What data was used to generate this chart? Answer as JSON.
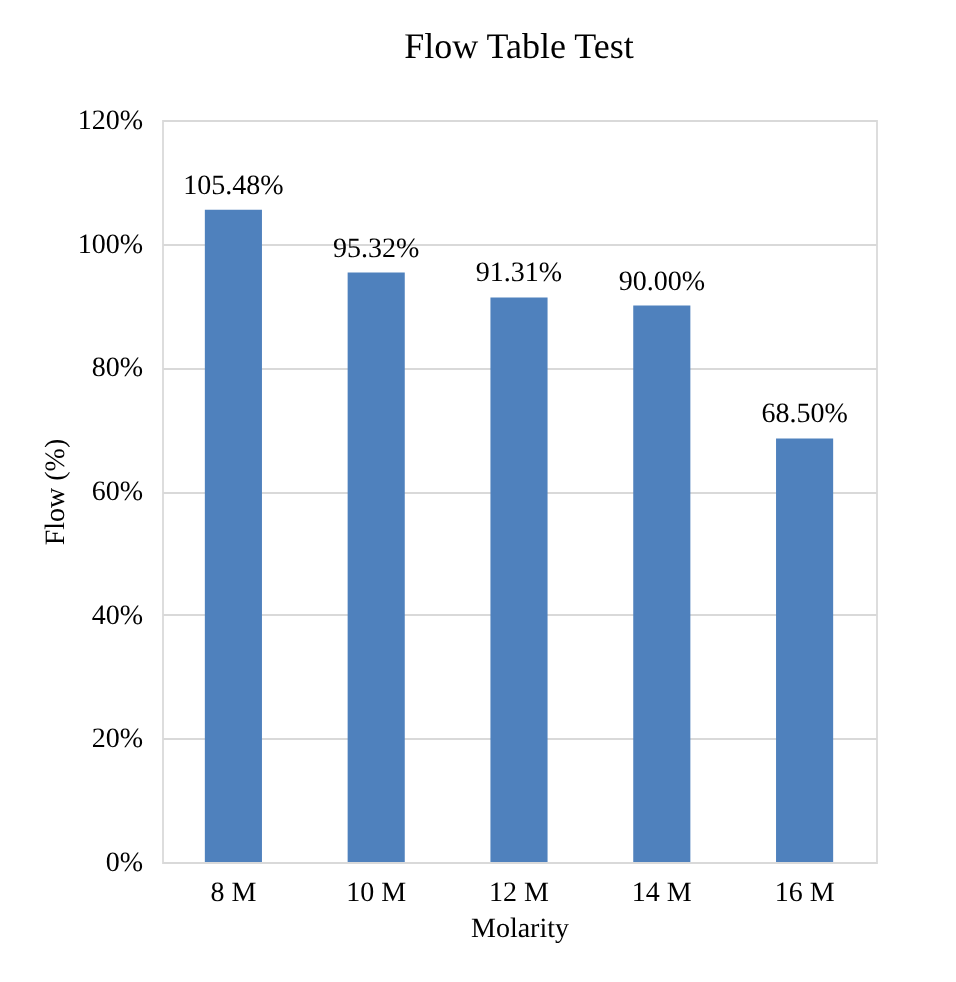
{
  "chart_data": {
    "type": "bar",
    "title": "Flow Table Test",
    "xlabel": "Molarity",
    "ylabel": "Flow (%)",
    "categories": [
      "8 M",
      "10 M",
      "12 M",
      "14 M",
      "16 M"
    ],
    "values": [
      105.48,
      95.32,
      91.31,
      90.0,
      68.5
    ],
    "value_labels": [
      "105.48%",
      "95.32%",
      "91.31%",
      "90.00%",
      "68.50%"
    ],
    "color": "#4f81bd",
    "ylim": [
      0,
      120
    ],
    "yticks": [
      {
        "value": 0,
        "label": "0%"
      },
      {
        "value": 20,
        "label": "20%"
      },
      {
        "value": 40,
        "label": "40%"
      },
      {
        "value": 60,
        "label": "60%"
      },
      {
        "value": 80,
        "label": "80%"
      },
      {
        "value": 100,
        "label": "100%"
      },
      {
        "value": 120,
        "label": "120%"
      }
    ],
    "grid": "y"
  }
}
